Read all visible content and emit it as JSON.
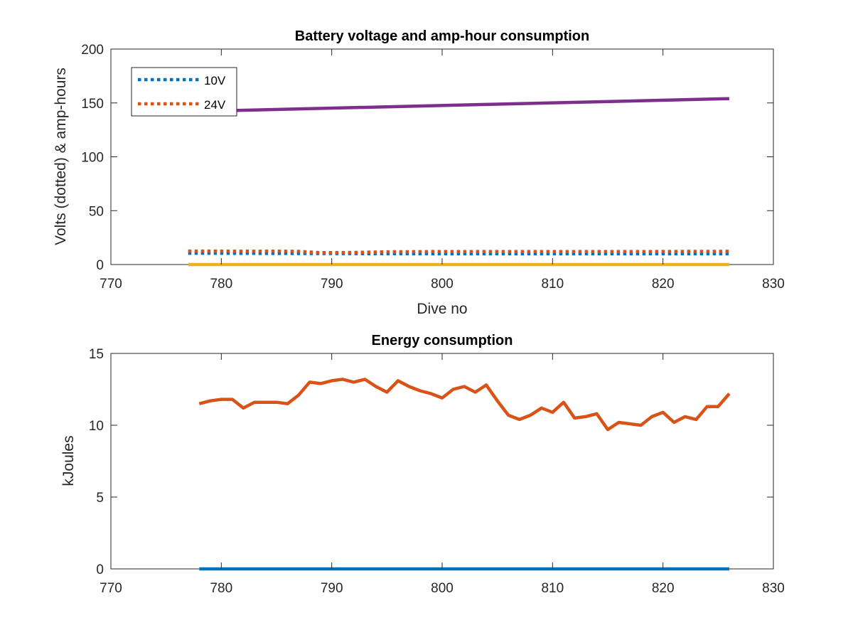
{
  "chart_data": [
    {
      "type": "line",
      "title": "Battery voltage and amp-hour consumption",
      "xlabel": "Dive no",
      "ylabel": "Volts (dotted) & amp-hours",
      "xlim": [
        770,
        830
      ],
      "ylim": [
        0,
        200
      ],
      "xticks": [
        770,
        780,
        790,
        800,
        810,
        820,
        830
      ],
      "yticks": [
        0,
        50,
        100,
        150,
        200
      ],
      "grid": false,
      "legend": {
        "location": "top-left",
        "entries": [
          "10V",
          "24V"
        ]
      },
      "series": [
        {
          "name": "10V",
          "style": "dotted",
          "color": "#0072BD",
          "x": [
            777,
            781,
            785,
            789,
            793,
            797,
            801,
            805,
            809,
            813,
            817,
            821,
            826
          ],
          "y": [
            10.5,
            10.4,
            10.3,
            10.2,
            10.1,
            10.1,
            10.0,
            10.0,
            10.0,
            10.0,
            10.0,
            10.0,
            10.0
          ]
        },
        {
          "name": "24V",
          "style": "dotted",
          "color": "#D95319",
          "x": [
            777,
            781,
            785,
            787,
            789,
            792,
            795,
            799,
            803,
            807,
            811,
            815,
            819,
            823,
            826
          ],
          "y": [
            12.5,
            12.4,
            12.4,
            12.2,
            11.0,
            11.2,
            11.8,
            12.0,
            12.0,
            12.1,
            12.1,
            12.0,
            12.1,
            12.2,
            12.3
          ]
        },
        {
          "style": "solid",
          "color": "#7E2F8E",
          "x": [
            777,
            826
          ],
          "y": [
            142,
            154
          ]
        },
        {
          "style": "solid",
          "color": "#EDB120",
          "x": [
            777,
            826
          ],
          "y": [
            0,
            0
          ]
        }
      ]
    },
    {
      "type": "line",
      "title": "Energy consumption",
      "xlabel": "",
      "ylabel": "kJoules",
      "xlim": [
        770,
        830
      ],
      "ylim": [
        0,
        15
      ],
      "xticks": [
        770,
        780,
        790,
        800,
        810,
        820,
        830
      ],
      "yticks": [
        0,
        5,
        10,
        15
      ],
      "grid": false,
      "series": [
        {
          "style": "solid",
          "color": "#0072BD",
          "x": [
            778,
            826
          ],
          "y": [
            0,
            0
          ]
        },
        {
          "style": "solid",
          "color": "#D95319",
          "x": [
            778,
            779,
            780,
            781,
            782,
            783,
            784,
            785,
            786,
            787,
            788,
            789,
            790,
            791,
            792,
            793,
            794,
            795,
            796,
            797,
            798,
            799,
            800,
            801,
            802,
            803,
            804,
            805,
            806,
            807,
            808,
            809,
            810,
            811,
            812,
            813,
            814,
            815,
            816,
            817,
            818,
            819,
            820,
            821,
            822,
            823,
            824,
            825,
            826
          ],
          "y": [
            11.5,
            11.7,
            11.8,
            11.8,
            11.2,
            11.6,
            11.6,
            11.6,
            11.5,
            12.1,
            13.0,
            12.9,
            13.1,
            13.2,
            13.0,
            13.2,
            12.7,
            12.3,
            13.1,
            12.7,
            12.4,
            12.2,
            11.9,
            12.5,
            12.7,
            12.3,
            12.8,
            11.7,
            10.7,
            10.4,
            10.7,
            11.2,
            10.9,
            11.6,
            10.5,
            10.6,
            10.8,
            9.7,
            10.2,
            10.1,
            10.0,
            10.6,
            10.9,
            10.2,
            10.6,
            10.4,
            11.3,
            11.3,
            12.2
          ]
        }
      ]
    }
  ]
}
